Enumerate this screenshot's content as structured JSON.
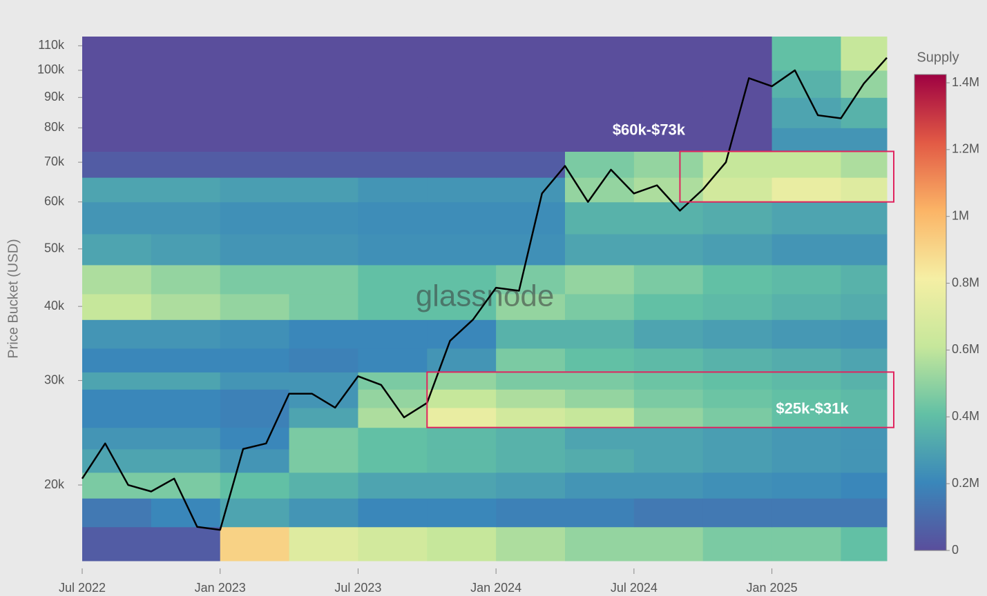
{
  "chart_data": {
    "type": "heatmap",
    "y_label": "Price Bucket (USD)",
    "watermark": "glassnode",
    "log_y": true,
    "xlim": [
      "2022-07",
      "2025-06"
    ],
    "xticks": [
      {
        "value": "2022-07",
        "label": "Jul 2022"
      },
      {
        "value": "2023-01",
        "label": "Jan 2023"
      },
      {
        "value": "2023-07",
        "label": "Jul 2023"
      },
      {
        "value": "2024-01",
        "label": "Jan 2024"
      },
      {
        "value": "2024-07",
        "label": "Jul 2024"
      },
      {
        "value": "2025-01",
        "label": "Jan 2025"
      }
    ],
    "ylim": [
      14900,
      114000
    ],
    "yticks": [
      {
        "value": 20000,
        "label": "20k"
      },
      {
        "value": 30000,
        "label": "30k"
      },
      {
        "value": 40000,
        "label": "40k"
      },
      {
        "value": 50000,
        "label": "50k"
      },
      {
        "value": 60000,
        "label": "60k"
      },
      {
        "value": 70000,
        "label": "70k"
      },
      {
        "value": 80000,
        "label": "80k"
      },
      {
        "value": 90000,
        "label": "90k"
      },
      {
        "value": 100000,
        "label": "100k"
      },
      {
        "value": 110000,
        "label": "110k"
      }
    ],
    "x_bins": [
      "2022-07",
      "2022-10",
      "2023-01",
      "2023-04",
      "2023-07",
      "2023-10",
      "2024-01",
      "2024-04",
      "2024-07",
      "2024-10",
      "2025-01",
      "2025-04",
      "2025-06"
    ],
    "y_bins": [
      14900,
      17000,
      19000,
      21000,
      23000,
      25000,
      27000,
      29000,
      31000,
      34000,
      38000,
      42000,
      47000,
      53000,
      60000,
      66000,
      73000,
      80000,
      90000,
      100000,
      114000
    ],
    "z": [
      [
        50000,
        50000,
        900000,
        700000,
        650000,
        600000,
        550000,
        500000,
        500000,
        450000,
        450000,
        400000
      ],
      [
        150000,
        200000,
        300000,
        250000,
        200000,
        200000,
        180000,
        180000,
        150000,
        150000,
        150000,
        150000
      ],
      [
        450000,
        450000,
        400000,
        350000,
        300000,
        300000,
        280000,
        250000,
        250000,
        230000,
        220000,
        200000
      ],
      [
        300000,
        300000,
        250000,
        450000,
        400000,
        380000,
        350000,
        330000,
        300000,
        280000,
        260000,
        250000
      ],
      [
        250000,
        250000,
        200000,
        450000,
        400000,
        380000,
        350000,
        300000,
        300000,
        280000,
        260000,
        250000
      ],
      [
        200000,
        200000,
        180000,
        300000,
        550000,
        750000,
        650000,
        600000,
        500000,
        450000,
        400000,
        380000
      ],
      [
        200000,
        200000,
        180000,
        250000,
        500000,
        600000,
        550000,
        500000,
        450000,
        420000,
        400000,
        380000
      ],
      [
        300000,
        300000,
        250000,
        250000,
        450000,
        500000,
        450000,
        450000,
        420000,
        400000,
        380000,
        350000
      ],
      [
        200000,
        200000,
        200000,
        180000,
        200000,
        250000,
        450000,
        400000,
        380000,
        350000,
        330000,
        300000
      ],
      [
        250000,
        250000,
        230000,
        200000,
        200000,
        200000,
        350000,
        350000,
        300000,
        280000,
        260000,
        250000
      ],
      [
        600000,
        550000,
        500000,
        450000,
        400000,
        400000,
        500000,
        450000,
        400000,
        380000,
        350000,
        330000
      ],
      [
        550000,
        500000,
        450000,
        450000,
        400000,
        400000,
        450000,
        500000,
        450000,
        400000,
        380000,
        350000
      ],
      [
        300000,
        280000,
        250000,
        250000,
        230000,
        230000,
        230000,
        300000,
        300000,
        280000,
        250000,
        250000
      ],
      [
        250000,
        250000,
        230000,
        230000,
        220000,
        220000,
        220000,
        350000,
        350000,
        330000,
        300000,
        300000
      ],
      [
        300000,
        300000,
        280000,
        280000,
        250000,
        250000,
        250000,
        500000,
        550000,
        650000,
        750000,
        700000
      ],
      [
        50000,
        50000,
        50000,
        50000,
        50000,
        50000,
        50000,
        450000,
        500000,
        600000,
        600000,
        550000
      ],
      [
        0,
        0,
        0,
        0,
        0,
        0,
        0,
        0,
        0,
        0,
        250000,
        250000
      ],
      [
        0,
        0,
        0,
        0,
        0,
        0,
        0,
        0,
        0,
        0,
        300000,
        350000
      ],
      [
        0,
        0,
        0,
        0,
        0,
        0,
        0,
        0,
        0,
        0,
        350000,
        500000
      ],
      [
        0,
        0,
        0,
        0,
        0,
        0,
        0,
        0,
        0,
        0,
        400000,
        600000
      ]
    ],
    "colorbar_title": "Supply",
    "zlim": [
      0,
      1400000
    ],
    "colorbar_ticks": [
      {
        "value": 0,
        "label": "0"
      },
      {
        "value": 200000,
        "label": "0.2M"
      },
      {
        "value": 400000,
        "label": "0.4M"
      },
      {
        "value": 600000,
        "label": "0.6M"
      },
      {
        "value": 800000,
        "label": "0.8M"
      },
      {
        "value": 1000000,
        "label": "1M"
      },
      {
        "value": 1200000,
        "label": "1.2M"
      },
      {
        "value": 1400000,
        "label": "1.4M"
      }
    ],
    "colorscale": [
      "#5a4e9c",
      "#3a87ba",
      "#62c0a5",
      "#c6e79b",
      "#f5efa4",
      "#fbb466",
      "#e25a45",
      "#9e0142"
    ],
    "line": {
      "color": "#000000",
      "x": [
        "2022-07",
        "2022-08",
        "2022-09",
        "2022-10",
        "2022-11",
        "2022-12",
        "2023-01",
        "2023-02",
        "2023-03",
        "2023-04",
        "2023-05",
        "2023-06",
        "2023-07",
        "2023-08",
        "2023-09",
        "2023-10",
        "2023-11",
        "2023-12",
        "2024-01",
        "2024-02",
        "2024-03",
        "2024-04",
        "2024-05",
        "2024-06",
        "2024-07",
        "2024-08",
        "2024-09",
        "2024-10",
        "2024-11",
        "2024-12",
        "2025-01",
        "2025-02",
        "2025-03",
        "2025-04",
        "2025-05",
        "2025-06"
      ],
      "values": [
        20500,
        23500,
        20000,
        19500,
        20500,
        17000,
        16800,
        23000,
        23500,
        28500,
        28500,
        27000,
        30500,
        29500,
        26000,
        27500,
        35000,
        38000,
        43000,
        42500,
        62000,
        69000,
        60000,
        68000,
        62000,
        64000,
        58000,
        63000,
        70000,
        97000,
        94000,
        100000,
        84000,
        83000,
        95000,
        105000
      ]
    },
    "annotations": [
      {
        "text": "$60k-$73k",
        "x": [
          "2024-09",
          "2025-06"
        ],
        "y": [
          60000,
          73000
        ],
        "color": "#e0245e"
      },
      {
        "text": "$25k-$31k",
        "x": [
          "2023-10",
          "2025-06"
        ],
        "y": [
          25000,
          31000
        ],
        "color": "#e0245e"
      }
    ]
  }
}
